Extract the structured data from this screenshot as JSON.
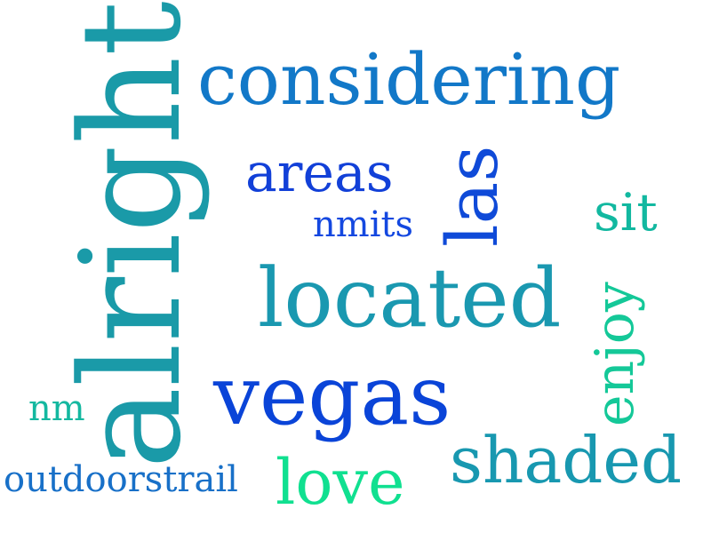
{
  "words": [
    {
      "text": "alright",
      "color": "#1a9aa8",
      "orientation": "vertical"
    },
    {
      "text": "considering",
      "color": "#1278c8",
      "orientation": "horizontal"
    },
    {
      "text": "areas",
      "color": "#1240d8",
      "orientation": "horizontal"
    },
    {
      "text": "las",
      "color": "#0f4ad8",
      "orientation": "vertical"
    },
    {
      "text": "nmits",
      "color": "#1448e0",
      "orientation": "horizontal"
    },
    {
      "text": "sit",
      "color": "#12b8a0",
      "orientation": "horizontal"
    },
    {
      "text": "located",
      "color": "#1a98b0",
      "orientation": "horizontal"
    },
    {
      "text": "enjoy",
      "color": "#14c898",
      "orientation": "vertical"
    },
    {
      "text": "vegas",
      "color": "#0a44d8",
      "orientation": "horizontal"
    },
    {
      "text": "nm",
      "color": "#14b8a0",
      "orientation": "horizontal"
    },
    {
      "text": "shaded",
      "color": "#1898b0",
      "orientation": "horizontal"
    },
    {
      "text": "outdoorstrail",
      "color": "#1870c8",
      "orientation": "horizontal"
    },
    {
      "text": "love",
      "color": "#10e090",
      "orientation": "horizontal"
    }
  ]
}
